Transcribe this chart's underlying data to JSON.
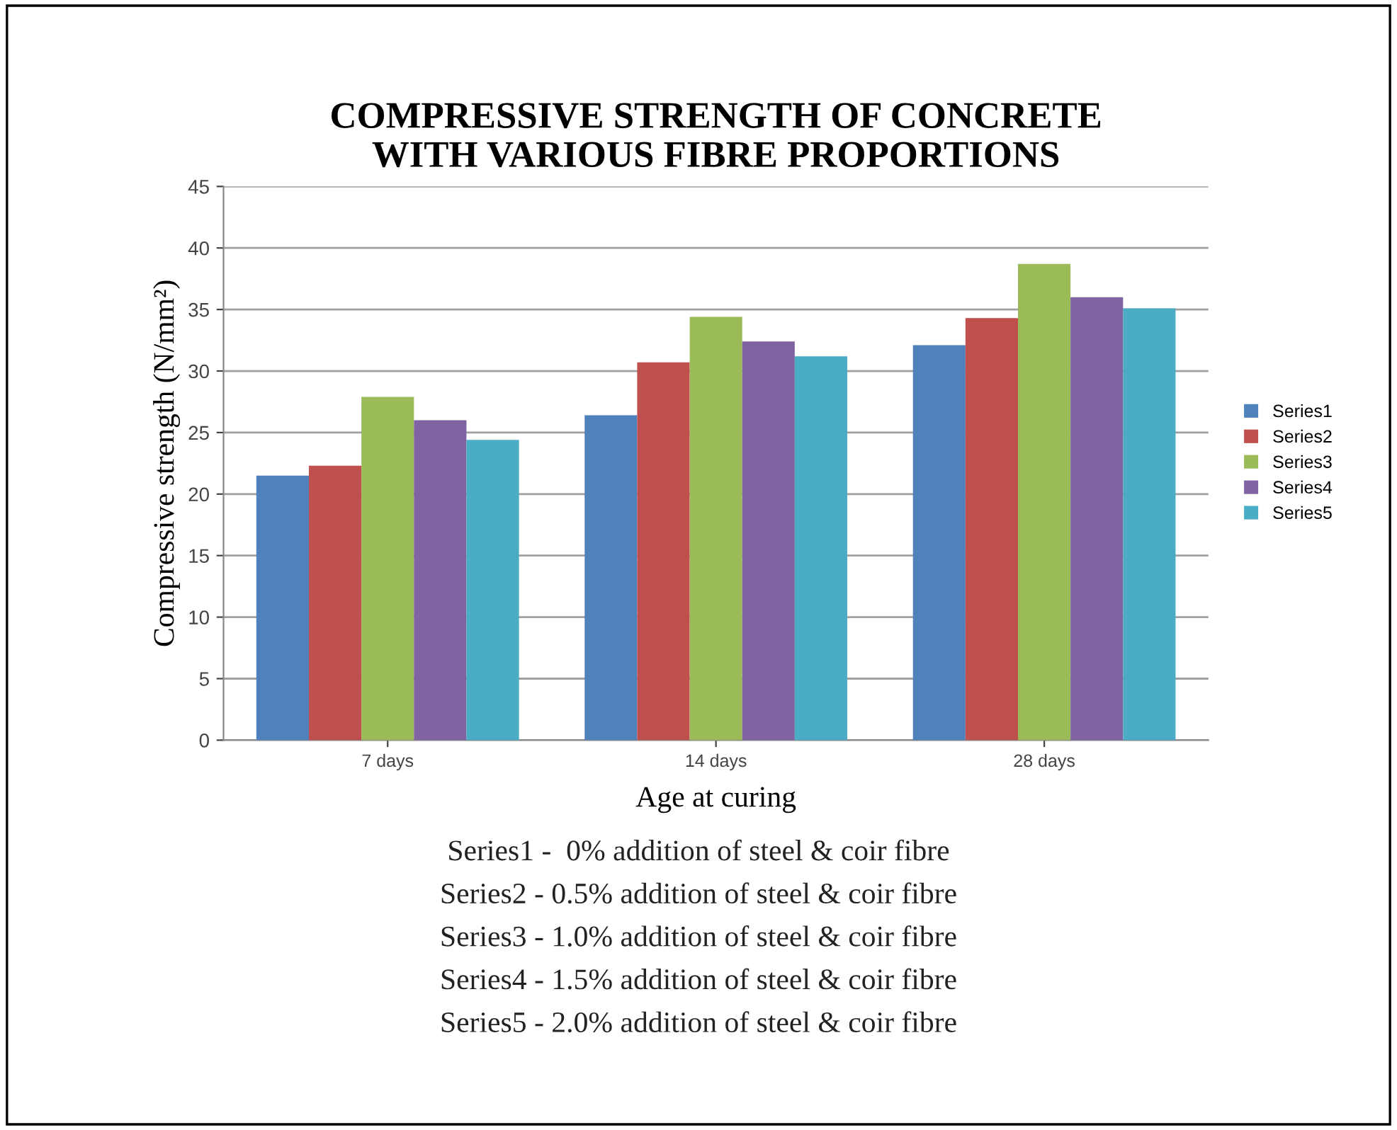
{
  "chart_data": {
    "type": "bar",
    "title": "COMPRESSIVE STRENGTH OF CONCRETE\nWITH VARIOUS FIBRE PROPORTIONS",
    "xlabel": "Age at curing",
    "ylabel": "Compressive strength (N/mm²)",
    "categories": [
      "7 days",
      "14 days",
      "28 days"
    ],
    "series": [
      {
        "name": "Series1",
        "color": "#4f81bd",
        "values": [
          21.5,
          26.4,
          32.1
        ]
      },
      {
        "name": "Series2",
        "color": "#c0504d",
        "values": [
          22.3,
          30.7,
          34.3
        ]
      },
      {
        "name": "Series3",
        "color": "#9bbb59",
        "values": [
          27.9,
          34.4,
          38.7
        ]
      },
      {
        "name": "Series4",
        "color": "#8064a2",
        "values": [
          26.0,
          32.4,
          36.0
        ]
      },
      {
        "name": "Series5",
        "color": "#4bacc6",
        "values": [
          24.4,
          31.2,
          35.1
        ]
      }
    ],
    "ylim": [
      0,
      45
    ],
    "yticks": [
      0,
      5,
      10,
      15,
      20,
      25,
      30,
      35,
      40,
      45
    ],
    "grid": "y",
    "legend": "right",
    "annotations": [
      "Series1 -  0% addition of steel & coir fibre",
      "Series2 - 0.5% addition of steel & coir fibre",
      "Series3 - 1.0% addition of steel & coir fibre",
      "Series4 - 1.5% addition of steel & coir fibre",
      "Series5 - 2.0% addition of steel & coir fibre"
    ]
  }
}
